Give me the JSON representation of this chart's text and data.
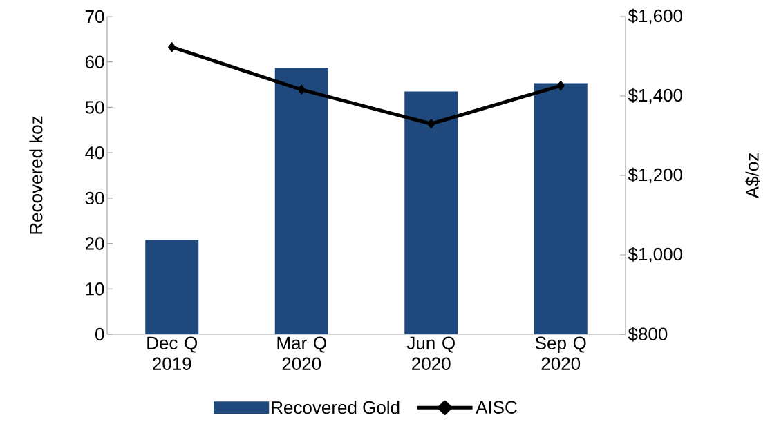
{
  "chart_data": {
    "type": "bar",
    "ylabel": "Recovered koz",
    "y2label": "A$/oz",
    "categories": [
      "Dec Q 2019",
      "Mar Q 2020",
      "Jun Q 2020",
      "Sep Q 2020"
    ],
    "series": [
      {
        "name": "Recovered Gold",
        "type": "bar",
        "color": "#1f497d",
        "values": [
          20.8,
          58.7,
          53.5,
          55.3
        ]
      },
      {
        "name": "AISC",
        "type": "line",
        "axis": "y2",
        "color": "#000000",
        "values": [
          1523,
          1416,
          1330,
          1426
        ]
      }
    ],
    "ylim": [
      0,
      70
    ],
    "yticks": [
      0,
      10,
      20,
      30,
      40,
      50,
      60,
      70
    ],
    "y2lim": [
      800,
      1600
    ],
    "y2ticks": [
      {
        "value": 800,
        "label": "$800"
      },
      {
        "value": 1000,
        "label": "$1,000"
      },
      {
        "value": 1200,
        "label": "$1,200"
      },
      {
        "value": 1400,
        "label": "$1,400"
      },
      {
        "value": 1600,
        "label": "$1,600"
      }
    ],
    "marker": "diamond",
    "legend": "bottom",
    "grid": false
  }
}
